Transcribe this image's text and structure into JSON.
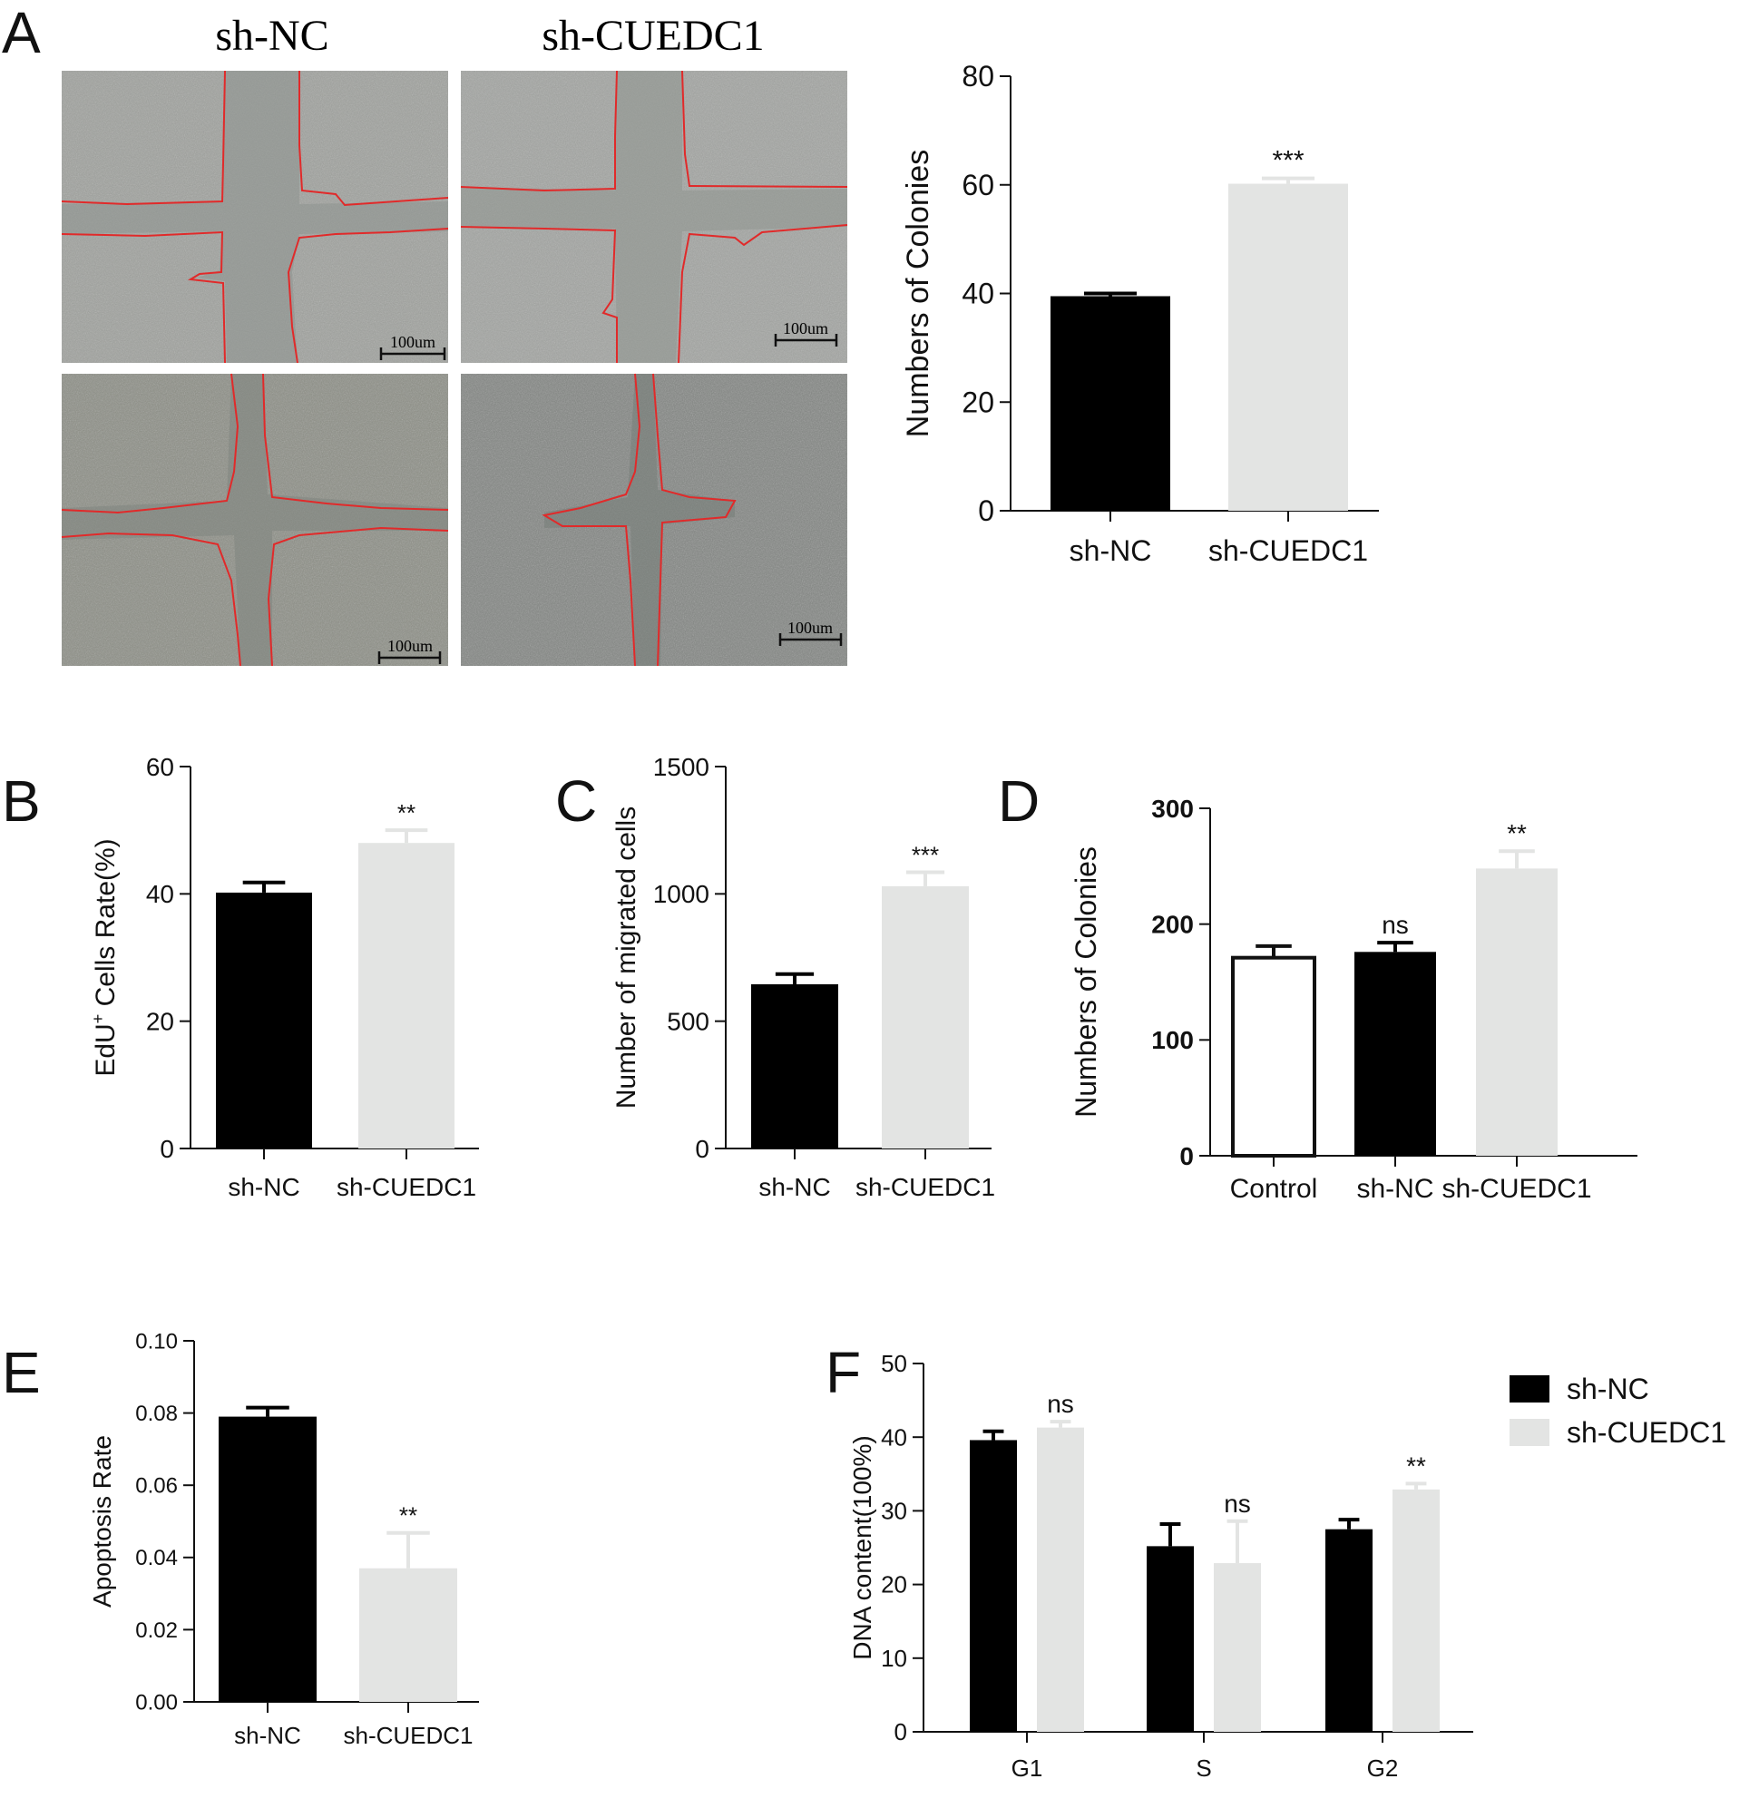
{
  "panels": {
    "A": {
      "letter": "A",
      "image_labels": [
        "sh-NC",
        "sh-CUEDC1"
      ],
      "scale_bar_label": "100um",
      "chart_data": {
        "type": "bar",
        "categories": [
          "sh-NC",
          "sh-CUEDC1"
        ],
        "values": [
          39.5,
          60.2
        ],
        "errors": [
          0.5,
          1.0
        ],
        "colors": [
          "#000000",
          "#e3e4e3"
        ],
        "significance": [
          "",
          "***"
        ],
        "ylabel": "Numbers of Colonies",
        "ylim": [
          0,
          80
        ],
        "yticks": [
          0,
          20,
          40,
          60,
          80
        ]
      }
    },
    "B": {
      "letter": "B",
      "chart_data": {
        "type": "bar",
        "categories": [
          "sh-NC",
          "sh-CUEDC1"
        ],
        "values": [
          40.2,
          48.0
        ],
        "errors": [
          1.6,
          2.0
        ],
        "colors": [
          "#000000",
          "#e3e4e3"
        ],
        "significance": [
          "",
          "**"
        ],
        "ylabel_main": "EdU",
        "ylabel_sup": "+",
        "ylabel_rest": " Cells Rate(%)",
        "ylim": [
          0,
          60
        ],
        "yticks": [
          0,
          20,
          40,
          60
        ]
      }
    },
    "C": {
      "letter": "C",
      "chart_data": {
        "type": "bar",
        "categories": [
          "sh-NC",
          "sh-CUEDC1"
        ],
        "values": [
          645,
          1030
        ],
        "errors": [
          40,
          55
        ],
        "colors": [
          "#000000",
          "#e3e4e3"
        ],
        "significance": [
          "",
          "***"
        ],
        "ylabel": "Number of migrated cells",
        "ylim": [
          0,
          1500
        ],
        "yticks": [
          0,
          500,
          1000,
          1500
        ]
      }
    },
    "D": {
      "letter": "D",
      "chart_data": {
        "type": "bar",
        "categories": [
          "Control",
          "sh-NC",
          "sh-CUEDC1"
        ],
        "values": [
          171,
          176,
          248
        ],
        "errors": [
          10,
          8,
          15
        ],
        "colors": [
          "#ffffff",
          "#000000",
          "#e3e4e3"
        ],
        "significance": [
          "",
          "ns",
          "**"
        ],
        "ylabel": "Numbers of Colonies",
        "ylim": [
          0,
          300
        ],
        "yticks": [
          0,
          100,
          200,
          300
        ]
      }
    },
    "E": {
      "letter": "E",
      "chart_data": {
        "type": "bar",
        "categories": [
          "sh-NC",
          "sh-CUEDC1"
        ],
        "values": [
          0.079,
          0.037
        ],
        "errors": [
          0.0025,
          0.0098
        ],
        "colors": [
          "#000000",
          "#e3e4e3"
        ],
        "significance": [
          "",
          "**"
        ],
        "ylabel": "Apoptosis Rate",
        "ylim": [
          0,
          0.1
        ],
        "yticks": [
          "0.00",
          "0.02",
          "0.04",
          "0.06",
          "0.08",
          "0.10"
        ]
      }
    },
    "F": {
      "letter": "F",
      "chart_data": {
        "type": "bar",
        "categories": [
          "G1",
          "S",
          "G2"
        ],
        "series": [
          {
            "name": "sh-NC",
            "color": "#000000",
            "values": [
              39.6,
              25.2,
              27.5
            ],
            "errors": [
              1.2,
              3.0,
              1.3
            ]
          },
          {
            "name": "sh-CUEDC1",
            "color": "#e3e4e3",
            "values": [
              41.3,
              22.9,
              32.9
            ],
            "errors": [
              0.8,
              5.7,
              0.8
            ]
          }
        ],
        "significance": [
          "ns",
          "ns",
          "**"
        ],
        "ylabel": "DNA content(100%)",
        "ylim": [
          0,
          50
        ],
        "yticks": [
          0,
          10,
          20,
          30,
          40,
          50
        ],
        "legend_position": "top-right"
      }
    }
  }
}
